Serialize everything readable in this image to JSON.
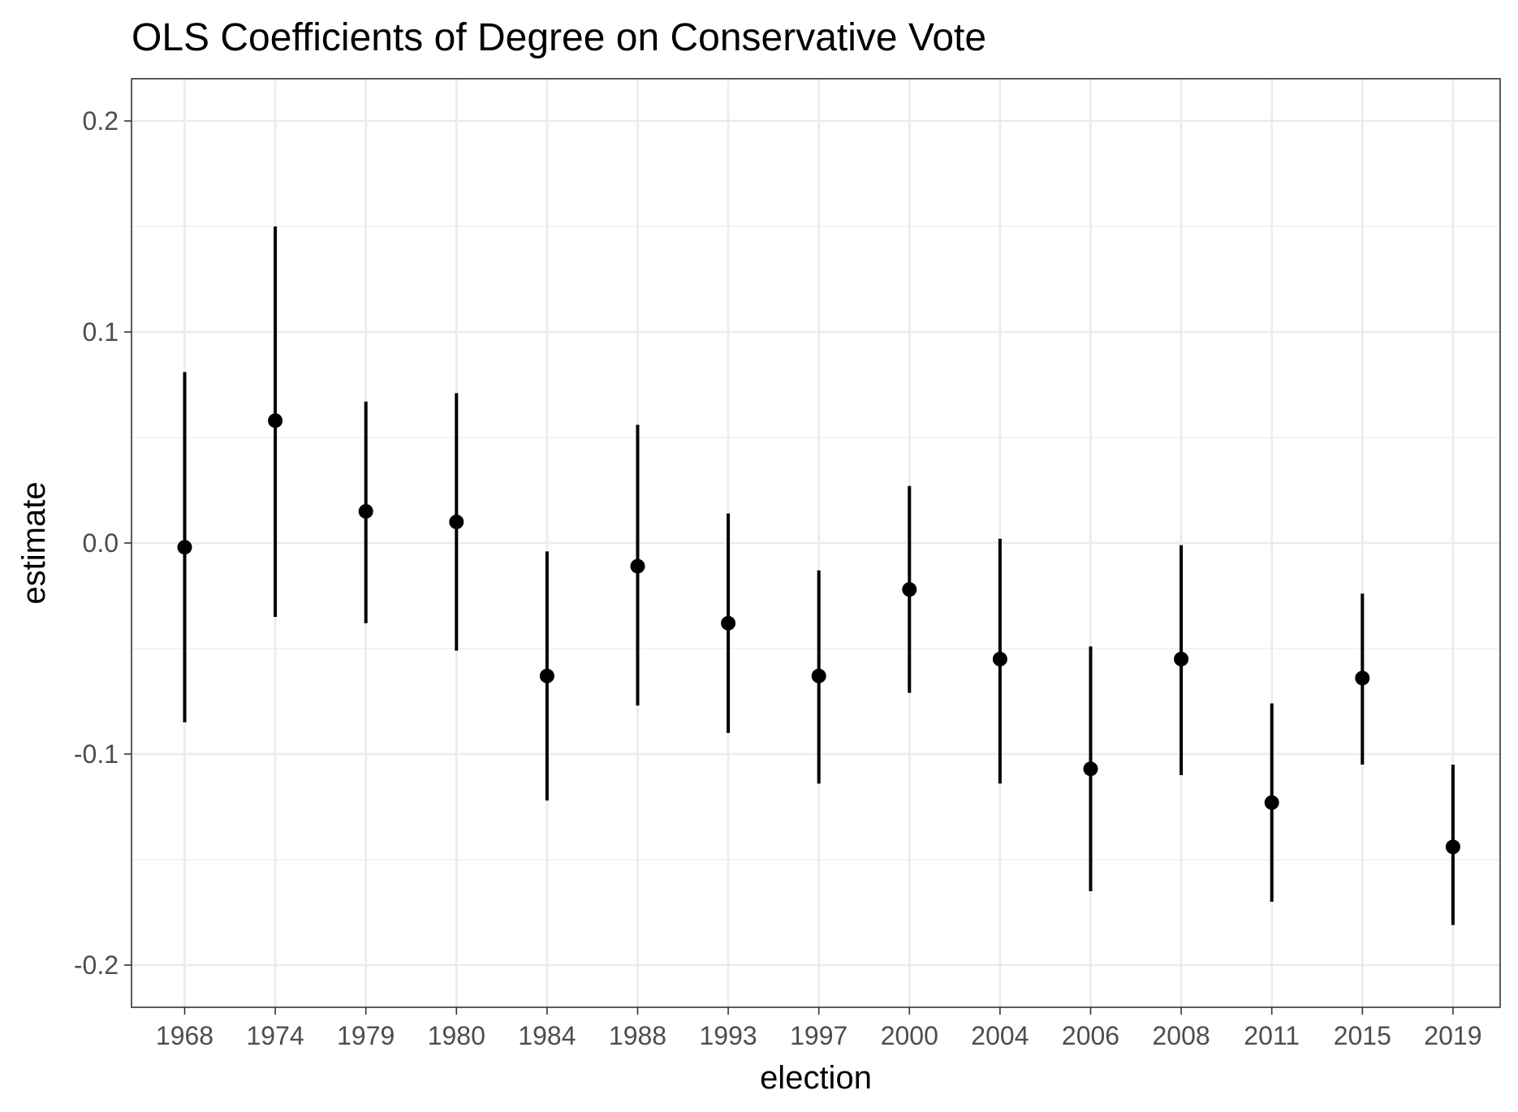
{
  "chart_data": {
    "type": "scatter",
    "title": "OLS Coefficients of Degree on Conservative Vote",
    "xlabel": "election",
    "ylabel": "estimate",
    "categories": [
      "1968",
      "1974",
      "1979",
      "1980",
      "1984",
      "1988",
      "1993",
      "1997",
      "2000",
      "2004",
      "2006",
      "2008",
      "2011",
      "2015",
      "2019"
    ],
    "series": [
      {
        "values": [
          -0.002,
          0.058,
          0.015,
          0.01,
          -0.063,
          -0.011,
          -0.038,
          -0.063,
          -0.022,
          -0.055,
          -0.107,
          -0.055,
          -0.123,
          -0.064,
          -0.144
        ],
        "lower": [
          -0.085,
          -0.035,
          -0.038,
          -0.051,
          -0.122,
          -0.077,
          -0.09,
          -0.114,
          -0.071,
          -0.114,
          -0.165,
          -0.11,
          -0.17,
          -0.105,
          -0.181
        ],
        "upper": [
          0.081,
          0.15,
          0.067,
          0.071,
          -0.004,
          0.056,
          0.014,
          -0.013,
          0.027,
          0.002,
          -0.049,
          -0.001,
          -0.076,
          -0.024,
          -0.105
        ]
      }
    ],
    "yticks": [
      "-0.2",
      "-0.1",
      "0.0",
      "0.1",
      "0.2"
    ],
    "ytick_values": [
      -0.2,
      -0.1,
      0.0,
      0.1,
      0.2
    ],
    "ylim": [
      -0.22,
      0.22
    ],
    "grid": true,
    "colors": {
      "points": "#000000",
      "grid": "#ebebeb",
      "panel_border": "#333333"
    }
  }
}
